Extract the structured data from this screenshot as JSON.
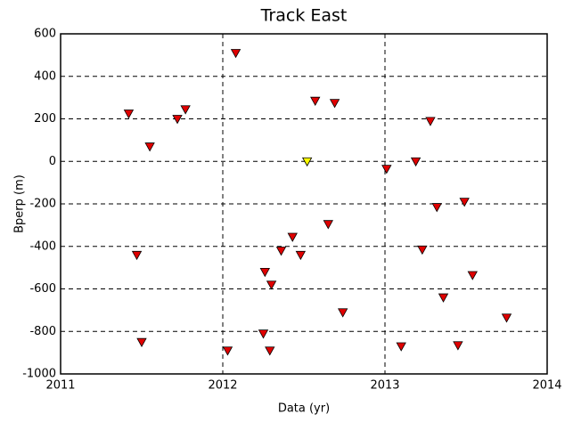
{
  "chart_data": {
    "type": "scatter",
    "title": "Track East",
    "x_label": "Data (yr)",
    "y_label": "Bperp (m)",
    "x": [
      2011.42,
      2011.47,
      2011.5,
      2011.55,
      2011.72,
      2011.77,
      2012.03,
      2012.08,
      2012.25,
      2012.26,
      2012.29,
      2012.3,
      2012.36,
      2012.43,
      2012.48,
      2012.52,
      2012.57,
      2012.65,
      2012.69,
      2012.74,
      2013.01,
      2013.1,
      2013.19,
      2013.23,
      2013.28,
      2013.32,
      2013.36,
      2013.45,
      2013.49,
      2013.54,
      2013.75
    ],
    "values": [
      225,
      -440,
      -850,
      70,
      200,
      245,
      -890,
      510,
      -810,
      -520,
      -890,
      -580,
      -420,
      -355,
      -440,
      0,
      285,
      -295,
      275,
      -710,
      -35,
      -870,
      0,
      -415,
      190,
      -215,
      -640,
      -865,
      -190,
      -535,
      -735
    ],
    "colors": [
      "#e00000",
      "#e00000",
      "#e00000",
      "#e00000",
      "#e00000",
      "#e00000",
      "#e00000",
      "#e00000",
      "#e00000",
      "#e00000",
      "#e00000",
      "#e00000",
      "#e00000",
      "#e00000",
      "#e00000",
      "#ffff00",
      "#e00000",
      "#e00000",
      "#e00000",
      "#e00000",
      "#e00000",
      "#e00000",
      "#e00000",
      "#e00000",
      "#e00000",
      "#e00000",
      "#e00000",
      "#e00000",
      "#e00000",
      "#e00000",
      "#e00000"
    ],
    "xlim": [
      2011,
      2014
    ],
    "xticks": [
      2011,
      2012,
      2013,
      2014
    ],
    "ylim": [
      -1000,
      600
    ],
    "yticks": [
      -1000,
      -800,
      -600,
      -400,
      -200,
      0,
      200,
      400,
      600
    ],
    "grid": true
  }
}
